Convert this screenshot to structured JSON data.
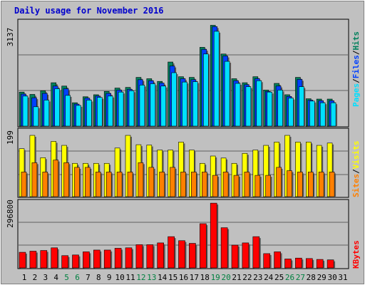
{
  "title": "Daily usage for November 2016",
  "colors": {
    "frame_bg": "#c0c0c0",
    "title": "#0000cc",
    "hits": "#00805c",
    "files": "#0040ff",
    "pages": "#00e0ff",
    "visits": "#ffff00",
    "sites": "#ff8000",
    "kbytes": "#ff0000",
    "weekday_label": "#000000",
    "weekend_label": "#008040"
  },
  "chart_data": [
    {
      "type": "bar",
      "name": "pages-files-hits",
      "max_label": "3137",
      "legend": [
        "Pages",
        "Files",
        "Hits"
      ],
      "categories": [
        "1",
        "2",
        "3",
        "4",
        "5",
        "6",
        "7",
        "8",
        "9",
        "10",
        "11",
        "12",
        "13",
        "14",
        "15",
        "16",
        "17",
        "18",
        "19",
        "20",
        "21",
        "22",
        "23",
        "24",
        "25",
        "26",
        "27",
        "28",
        "29",
        "30",
        "31"
      ],
      "ylim": [
        0,
        3137
      ],
      "series": [
        {
          "name": "Hits",
          "values": [
            1020,
            950,
            1060,
            1300,
            1200,
            700,
            880,
            940,
            1040,
            1140,
            1160,
            1460,
            1420,
            1340,
            1920,
            1480,
            1460,
            2360,
            3020,
            2160,
            1420,
            1300,
            1480,
            1080,
            1280,
            940,
            1460,
            820,
            810,
            810,
            null
          ]
        },
        {
          "name": "Files",
          "values": [
            960,
            850,
            980,
            1200,
            1120,
            660,
            840,
            900,
            980,
            1080,
            1100,
            1390,
            1360,
            1290,
            1800,
            1420,
            1390,
            2300,
            2980,
            2100,
            1360,
            1240,
            1420,
            1040,
            1200,
            890,
            1400,
            780,
            760,
            760,
            null
          ]
        },
        {
          "name": "Pages",
          "values": [
            900,
            580,
            780,
            1120,
            920,
            620,
            780,
            860,
            900,
            1020,
            1060,
            1230,
            1270,
            1200,
            1600,
            1320,
            1330,
            2160,
            2840,
            1940,
            1280,
            1180,
            1360,
            1020,
            1080,
            840,
            1180,
            750,
            700,
            700,
            null
          ]
        }
      ],
      "weekend_days": [
        "5",
        "6",
        "12",
        "13",
        "19",
        "20",
        "26",
        "27"
      ]
    },
    {
      "type": "bar",
      "name": "visits-sites",
      "max_label": "199",
      "legend": [
        "Sites",
        "Visits"
      ],
      "categories": [
        "1",
        "2",
        "3",
        "4",
        "5",
        "6",
        "7",
        "8",
        "9",
        "10",
        "11",
        "12",
        "13",
        "14",
        "15",
        "16",
        "17",
        "18",
        "19",
        "20",
        "21",
        "22",
        "23",
        "24",
        "25",
        "26",
        "27",
        "28",
        "29",
        "30",
        "31"
      ],
      "ylim": [
        0,
        199
      ],
      "series": [
        {
          "name": "Visits",
          "values": [
            144,
            184,
            117,
            166,
            154,
            100,
            100,
            100,
            100,
            146,
            184,
            156,
            155,
            140,
            140,
            164,
            140,
            100,
            122,
            116,
            100,
            130,
            140,
            154,
            164,
            184,
            164,
            164,
            154,
            161,
            null
          ]
        },
        {
          "name": "Sites",
          "values": [
            74,
            102,
            74,
            110,
            102,
            88,
            88,
            74,
            74,
            74,
            74,
            102,
            88,
            74,
            88,
            74,
            74,
            74,
            64,
            74,
            64,
            74,
            64,
            64,
            88,
            78,
            74,
            74,
            74,
            74,
            null
          ]
        }
      ],
      "weekend_days": [
        "5",
        "6",
        "12",
        "13",
        "19",
        "20",
        "26",
        "27"
      ]
    },
    {
      "type": "bar",
      "name": "kbytes",
      "max_label": "296800",
      "legend": [
        "KBytes"
      ],
      "categories": [
        "1",
        "2",
        "3",
        "4",
        "5",
        "6",
        "7",
        "8",
        "9",
        "10",
        "11",
        "12",
        "13",
        "14",
        "15",
        "16",
        "17",
        "18",
        "19",
        "20",
        "21",
        "22",
        "23",
        "24",
        "25",
        "26",
        "27",
        "28",
        "29",
        "30",
        "31"
      ],
      "ylim": [
        0,
        296800
      ],
      "series": [
        {
          "name": "KBytes",
          "values": [
            70000,
            75000,
            78000,
            90000,
            55000,
            58000,
            72000,
            80000,
            80000,
            88000,
            90000,
            104000,
            104000,
            112000,
            140000,
            122000,
            110000,
            198000,
            290000,
            180000,
            102000,
            112000,
            140000,
            64000,
            72000,
            40000,
            44000,
            42000,
            38000,
            36000,
            null
          ]
        }
      ],
      "weekend_days": [
        "5",
        "6",
        "12",
        "13",
        "19",
        "20",
        "26",
        "27"
      ]
    }
  ]
}
